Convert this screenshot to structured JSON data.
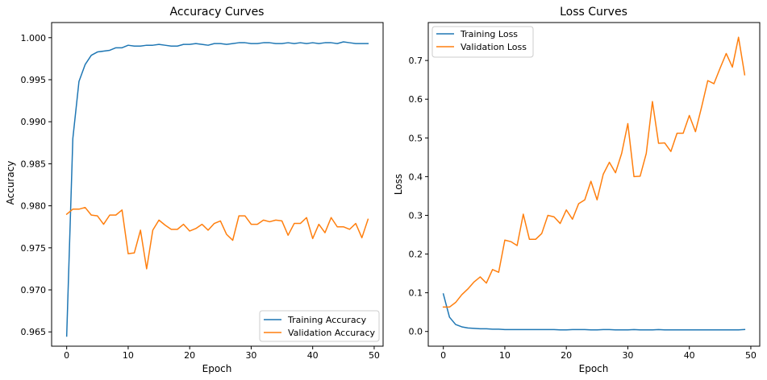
{
  "chart_data": [
    {
      "type": "line",
      "title": "Accuracy Curves",
      "xlabel": "Epoch",
      "ylabel": "Accuracy",
      "xlim": [
        -2.45,
        51.45
      ],
      "ylim": [
        0.9633,
        1.0018
      ],
      "xticks": [
        0,
        10,
        20,
        30,
        40,
        50
      ],
      "xtick_labels": [
        "0",
        "10",
        "20",
        "30",
        "40",
        "50"
      ],
      "yticks": [
        0.965,
        0.97,
        0.975,
        0.98,
        0.985,
        0.99,
        0.995,
        1.0
      ],
      "ytick_labels": [
        "0.965",
        "0.970",
        "0.975",
        "0.980",
        "0.985",
        "0.990",
        "0.995",
        "1.000"
      ],
      "grid": false,
      "legend_position": "lower-right",
      "x": [
        0,
        1,
        2,
        3,
        4,
        5,
        6,
        7,
        8,
        9,
        10,
        11,
        12,
        13,
        14,
        15,
        16,
        17,
        18,
        19,
        20,
        21,
        22,
        23,
        24,
        25,
        26,
        27,
        28,
        29,
        30,
        31,
        32,
        33,
        34,
        35,
        36,
        37,
        38,
        39,
        40,
        41,
        42,
        43,
        44,
        45,
        46,
        47,
        48,
        49
      ],
      "series": [
        {
          "name": "Training Accuracy",
          "color": "#1f77b4",
          "values": [
            0.9645,
            0.988,
            0.9948,
            0.9968,
            0.9979,
            0.9983,
            0.9984,
            0.9985,
            0.9988,
            0.9988,
            0.9991,
            0.999,
            0.999,
            0.9991,
            0.9991,
            0.9992,
            0.9991,
            0.999,
            0.999,
            0.9992,
            0.9992,
            0.9993,
            0.9992,
            0.9991,
            0.9993,
            0.9993,
            0.9992,
            0.9993,
            0.9994,
            0.9994,
            0.9993,
            0.9993,
            0.9994,
            0.9994,
            0.9993,
            0.9993,
            0.9994,
            0.9993,
            0.9994,
            0.9993,
            0.9994,
            0.9993,
            0.9994,
            0.9994,
            0.9993,
            0.9995,
            0.9994,
            0.9993,
            0.9993,
            0.9993
          ]
        },
        {
          "name": "Validation Accuracy",
          "color": "#ff7f0e",
          "values": [
            0.979,
            0.9796,
            0.9796,
            0.9798,
            0.9789,
            0.9788,
            0.9778,
            0.9789,
            0.9789,
            0.9795,
            0.9743,
            0.9744,
            0.9771,
            0.9725,
            0.9771,
            0.9783,
            0.9777,
            0.9772,
            0.9772,
            0.9778,
            0.977,
            0.9773,
            0.9778,
            0.9771,
            0.9779,
            0.9782,
            0.9766,
            0.9759,
            0.9788,
            0.9788,
            0.9778,
            0.9778,
            0.9783,
            0.9781,
            0.9783,
            0.9782,
            0.9765,
            0.9779,
            0.9779,
            0.9786,
            0.9761,
            0.9778,
            0.9768,
            0.9786,
            0.9775,
            0.9775,
            0.9772,
            0.9779,
            0.9762,
            0.9784
          ]
        }
      ]
    },
    {
      "type": "line",
      "title": "Loss Curves",
      "xlabel": "Epoch",
      "ylabel": "Loss",
      "xlim": [
        -2.45,
        51.45
      ],
      "ylim": [
        -0.038,
        0.798
      ],
      "xticks": [
        0,
        10,
        20,
        30,
        40,
        50
      ],
      "xtick_labels": [
        "0",
        "10",
        "20",
        "30",
        "40",
        "50"
      ],
      "yticks": [
        0.0,
        0.1,
        0.2,
        0.3,
        0.4,
        0.5,
        0.6,
        0.7
      ],
      "ytick_labels": [
        "0.0",
        "0.1",
        "0.2",
        "0.3",
        "0.4",
        "0.5",
        "0.6",
        "0.7"
      ],
      "grid": false,
      "legend_position": "upper-left",
      "x": [
        0,
        1,
        2,
        3,
        4,
        5,
        6,
        7,
        8,
        9,
        10,
        11,
        12,
        13,
        14,
        15,
        16,
        17,
        18,
        19,
        20,
        21,
        22,
        23,
        24,
        25,
        26,
        27,
        28,
        29,
        30,
        31,
        32,
        33,
        34,
        35,
        36,
        37,
        38,
        39,
        40,
        41,
        42,
        43,
        44,
        45,
        46,
        47,
        48,
        49
      ],
      "series": [
        {
          "name": "Training Loss",
          "color": "#1f77b4",
          "values": [
            0.097,
            0.037,
            0.018,
            0.012,
            0.009,
            0.008,
            0.007,
            0.007,
            0.006,
            0.006,
            0.005,
            0.005,
            0.005,
            0.005,
            0.005,
            0.005,
            0.005,
            0.005,
            0.005,
            0.004,
            0.004,
            0.005,
            0.005,
            0.005,
            0.004,
            0.004,
            0.005,
            0.005,
            0.004,
            0.004,
            0.004,
            0.005,
            0.004,
            0.004,
            0.004,
            0.005,
            0.004,
            0.004,
            0.004,
            0.004,
            0.004,
            0.004,
            0.004,
            0.004,
            0.004,
            0.004,
            0.004,
            0.004,
            0.004,
            0.005
          ]
        },
        {
          "name": "Validation Loss",
          "color": "#ff7f0e",
          "values": [
            0.063,
            0.063,
            0.075,
            0.095,
            0.11,
            0.128,
            0.141,
            0.125,
            0.16,
            0.153,
            0.236,
            0.232,
            0.222,
            0.303,
            0.238,
            0.238,
            0.253,
            0.3,
            0.296,
            0.279,
            0.314,
            0.29,
            0.33,
            0.34,
            0.388,
            0.34,
            0.406,
            0.437,
            0.41,
            0.46,
            0.537,
            0.4,
            0.401,
            0.46,
            0.594,
            0.486,
            0.487,
            0.465,
            0.512,
            0.512,
            0.558,
            0.516,
            0.58,
            0.648,
            0.64,
            0.68,
            0.718,
            0.683,
            0.76,
            0.663
          ]
        }
      ]
    }
  ]
}
